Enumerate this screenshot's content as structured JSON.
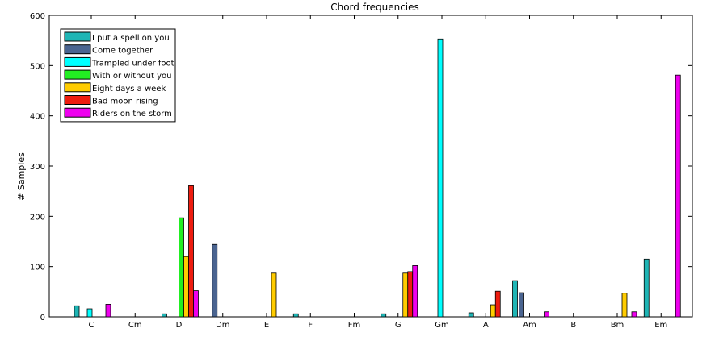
{
  "chart_data": {
    "type": "bar",
    "title": "Chord frequencies",
    "xlabel": "",
    "ylabel": "# Samples",
    "ylim": [
      0,
      600
    ],
    "yticks": [
      0,
      100,
      200,
      300,
      400,
      500,
      600
    ],
    "grid": false,
    "legend_position": "top-left",
    "categories": [
      "C",
      "Cm",
      "D",
      "Dm",
      "E",
      "F",
      "Fm",
      "G",
      "Gm",
      "A",
      "Am",
      "B",
      "Bm",
      "Em"
    ],
    "series": [
      {
        "name": "I put a spell on you",
        "color": "#1fb5b5",
        "values": [
          22,
          0,
          6,
          0,
          0,
          6,
          0,
          6,
          0,
          8,
          72,
          0,
          0,
          115
        ]
      },
      {
        "name": "Come together",
        "color": "#4a6490",
        "values": [
          0,
          0,
          0,
          144,
          0,
          0,
          0,
          0,
          0,
          0,
          48,
          0,
          0,
          0
        ]
      },
      {
        "name": "Trampled under foot",
        "color": "#00ffff",
        "values": [
          16,
          0,
          0,
          0,
          0,
          0,
          0,
          0,
          553,
          0,
          0,
          0,
          0,
          0
        ]
      },
      {
        "name": "With or without you",
        "color": "#22ee22",
        "values": [
          0,
          0,
          197,
          0,
          0,
          0,
          0,
          0,
          0,
          0,
          0,
          0,
          0,
          0
        ]
      },
      {
        "name": "Eight days a week",
        "color": "#ffcc00",
        "values": [
          0,
          0,
          120,
          0,
          87,
          0,
          0,
          87,
          0,
          24,
          0,
          0,
          47,
          0
        ]
      },
      {
        "name": "Bad moon rising",
        "color": "#ee1c0f",
        "values": [
          0,
          0,
          261,
          0,
          0,
          0,
          0,
          90,
          0,
          51,
          0,
          0,
          0,
          0
        ]
      },
      {
        "name": "Riders on the storm",
        "color": "#ee00ee",
        "values": [
          25,
          0,
          52,
          0,
          0,
          0,
          0,
          102,
          0,
          0,
          10,
          0,
          10,
          481
        ]
      }
    ]
  }
}
